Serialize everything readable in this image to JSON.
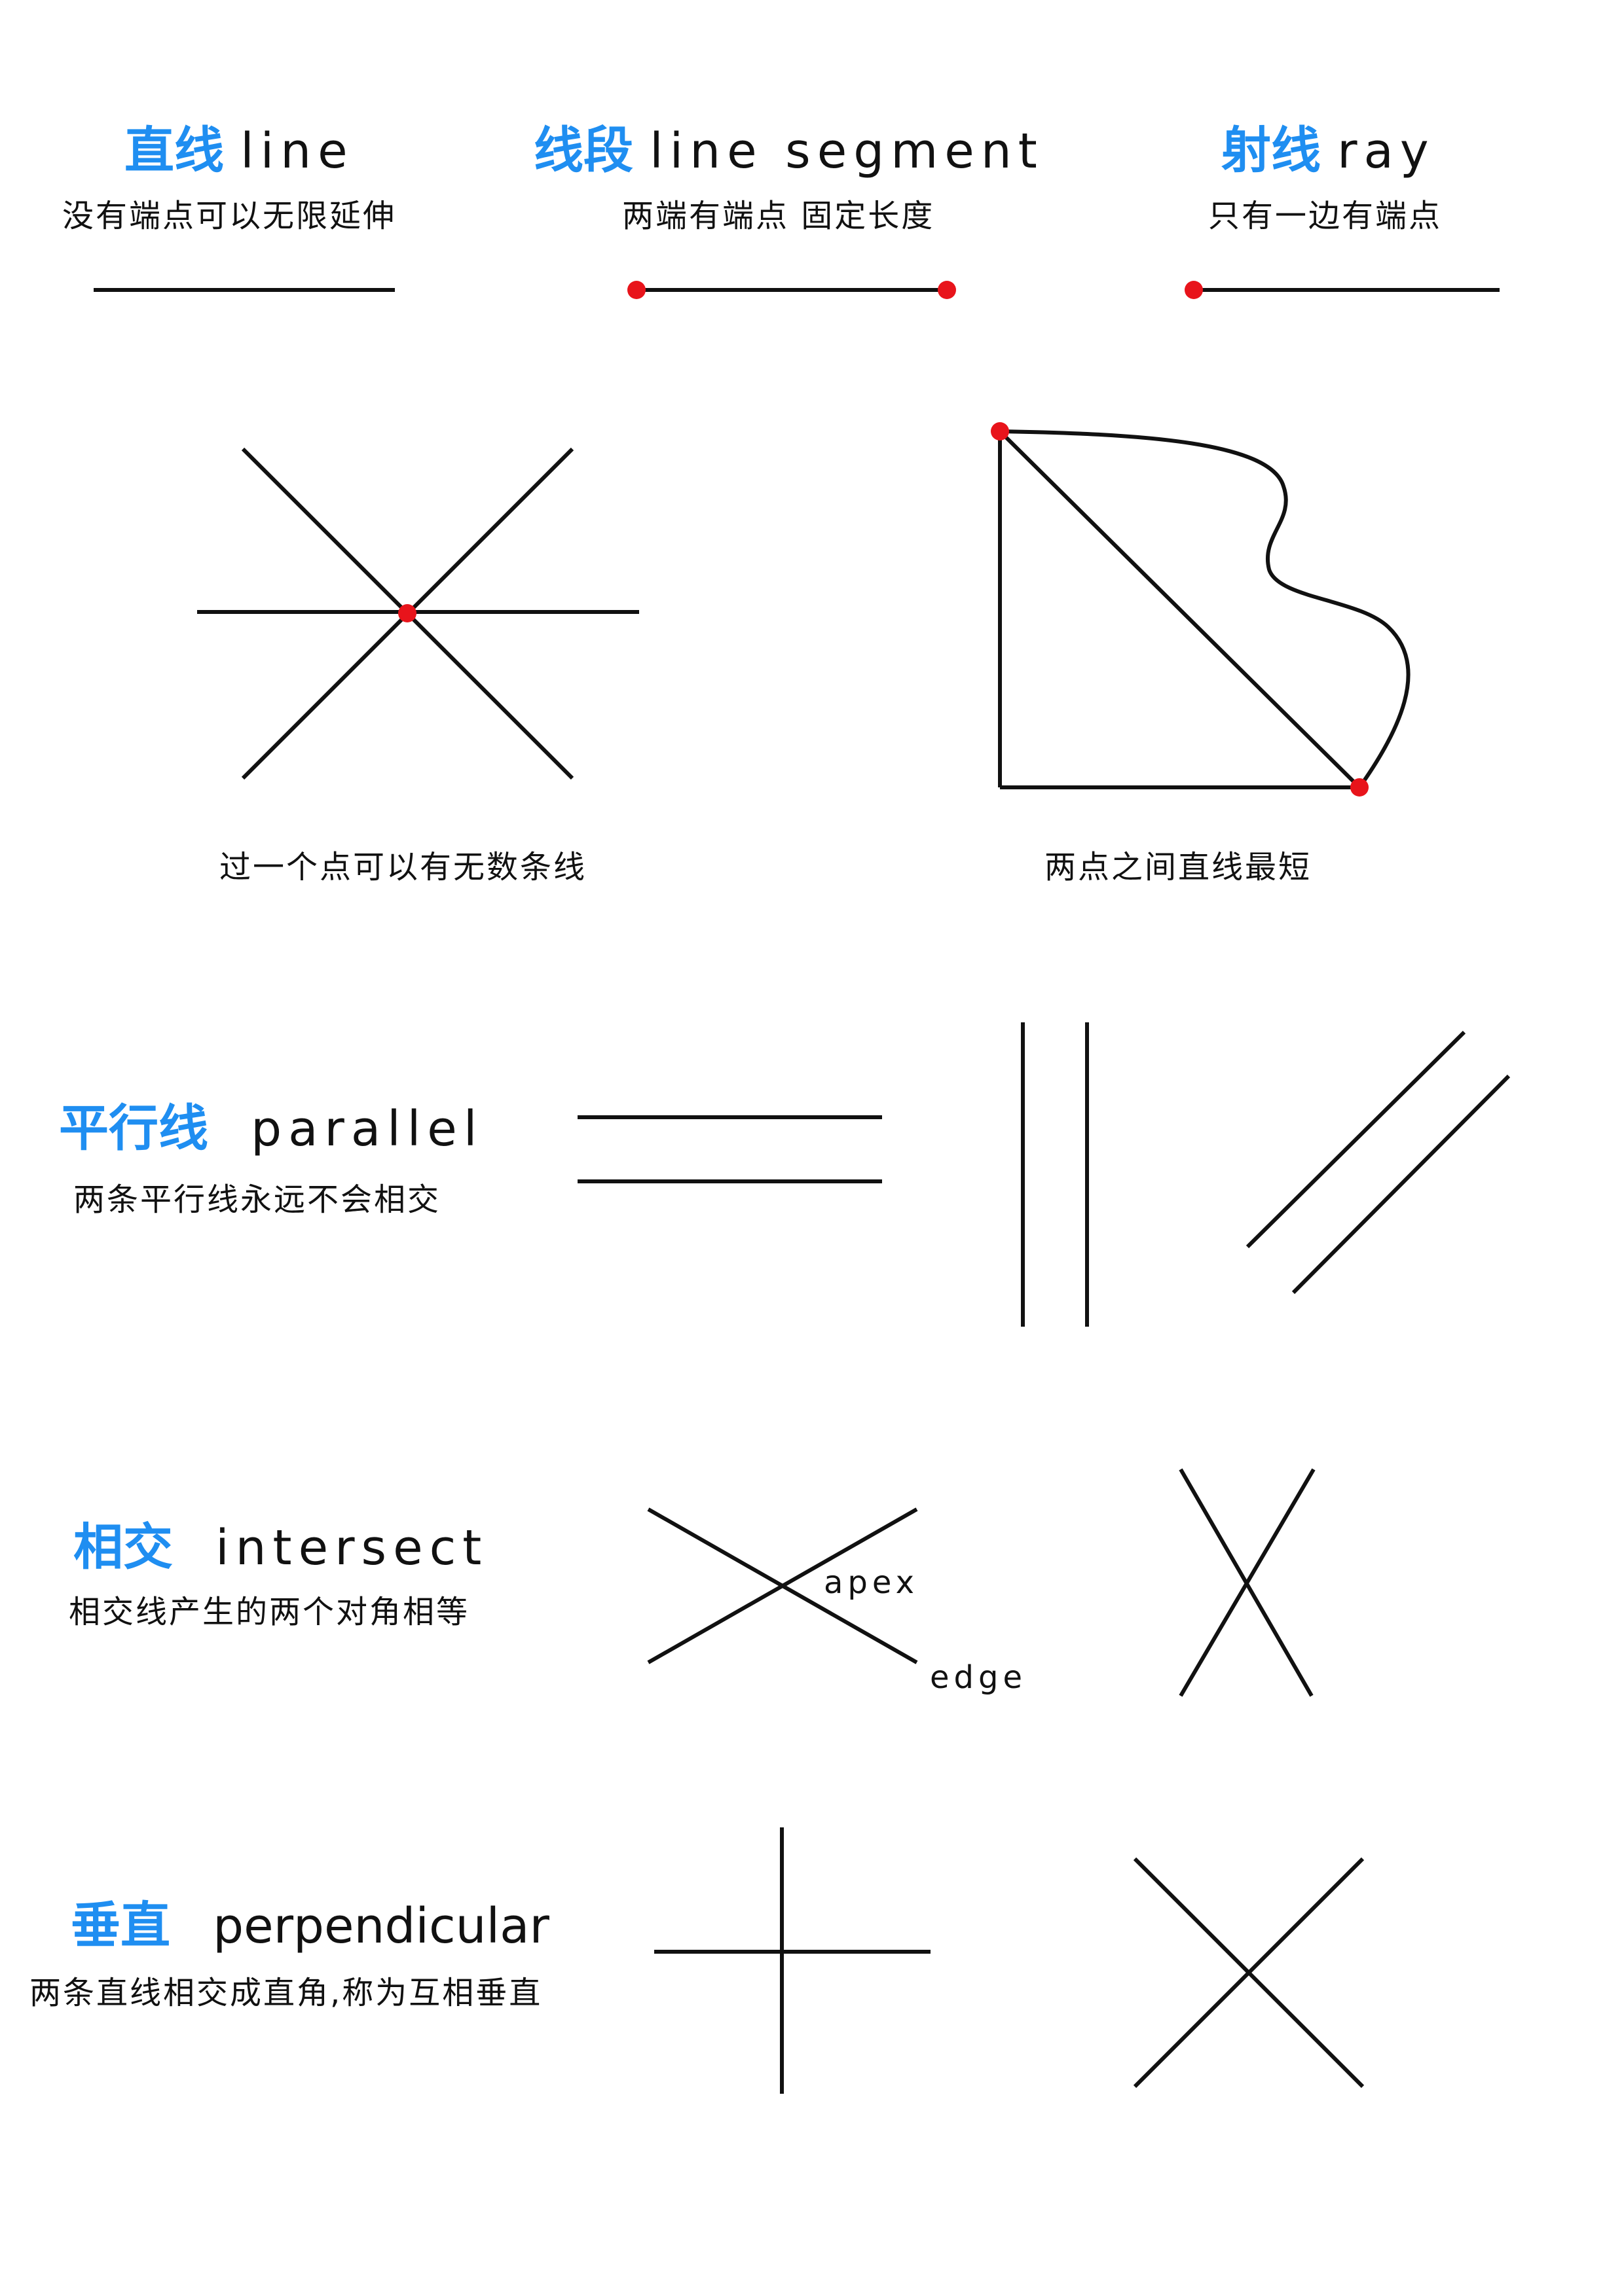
{
  "colors": {
    "accent_blue": "#1f8ef1",
    "point_red": "#e8141b",
    "stroke": "#111111",
    "background": "#ffffff"
  },
  "line": {
    "title_cn": "直线",
    "title_en": "line",
    "desc": "没有端点可以无限延伸"
  },
  "segment": {
    "title_cn": "线段",
    "title_en": "line segment",
    "desc": "两端有端点 固定长度"
  },
  "ray": {
    "title_cn": "射线",
    "title_en": "ray",
    "desc": "只有一边有端点"
  },
  "infinite_lines": {
    "caption": "过一个点可以有无数条线"
  },
  "shortest": {
    "caption": "两点之间直线最短"
  },
  "parallel": {
    "title_cn": "平行线",
    "title_en": "parallel",
    "desc": "两条平行线永远不会相交"
  },
  "intersect": {
    "title_cn": "相交",
    "title_en": "intersect",
    "desc": "相交线产生的两个对角相等",
    "apex_label": "apex",
    "edge_label": "edge"
  },
  "perpendicular": {
    "title_cn": "垂直",
    "title_en": "perpendicular",
    "desc": "两条直线相交成直角,称为互相垂直"
  }
}
